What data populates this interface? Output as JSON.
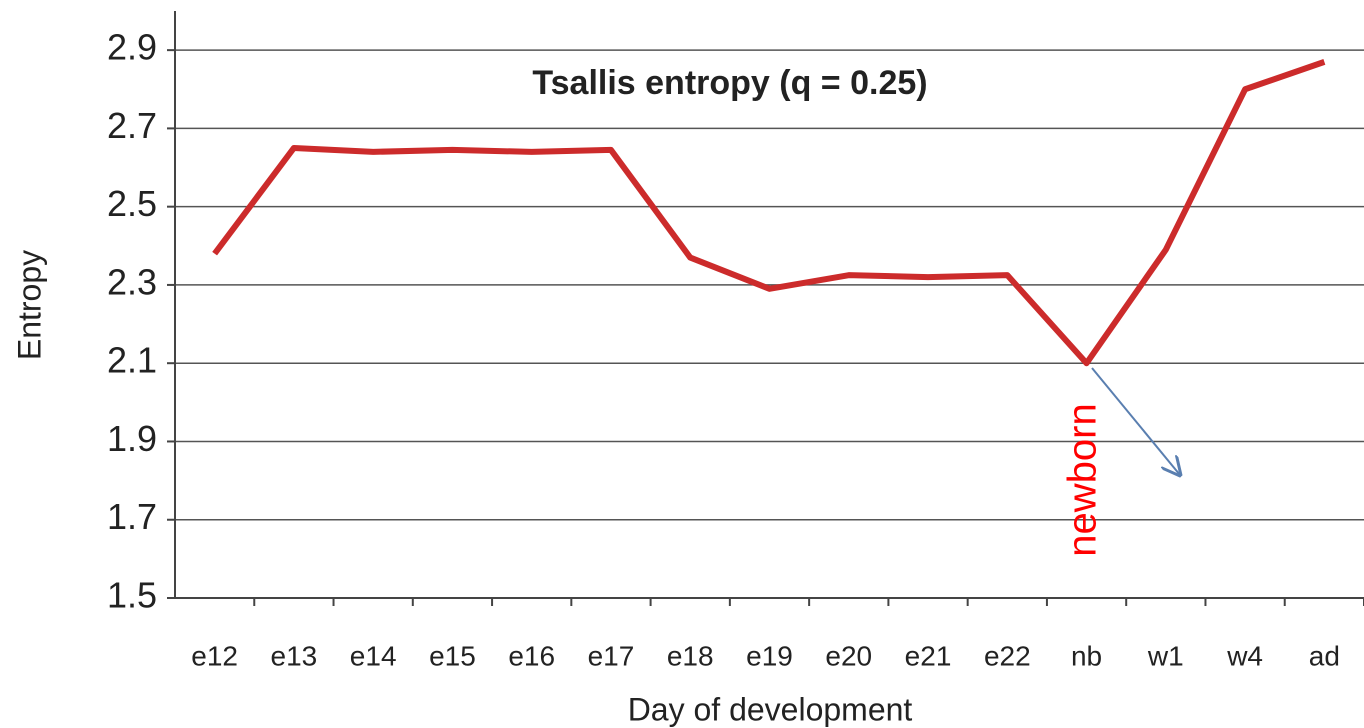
{
  "chart_data": {
    "type": "line",
    "annotation": "Tsallis entropy (q = 0.25)",
    "x_label": "Day of development",
    "y_label": "Entropy",
    "callout": "newborn",
    "categories": [
      "e12",
      "e13",
      "e14",
      "e15",
      "e16",
      "e17",
      "e18",
      "e19",
      "e20",
      "e21",
      "e22",
      "nb",
      "w1",
      "w4",
      "ad"
    ],
    "series": [
      {
        "name": "Tsallis entropy",
        "color": "#cc2b2b",
        "values": [
          2.38,
          2.65,
          2.64,
          2.645,
          2.64,
          2.645,
          2.37,
          2.29,
          2.325,
          2.32,
          2.325,
          2.1,
          2.39,
          2.8,
          2.87
        ]
      }
    ],
    "ylim": [
      1.5,
      3.0
    ],
    "yticks": [
      1.5,
      1.7,
      1.9,
      2.1,
      2.3,
      2.5,
      2.7,
      2.9
    ],
    "grid": true,
    "legend": false
  }
}
